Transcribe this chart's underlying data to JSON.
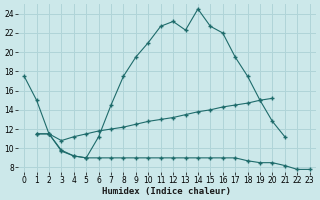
{
  "xlabel": "Humidex (Indice chaleur)",
  "background_color": "#cce8ea",
  "grid_color": "#b0d4d8",
  "line_color": "#1e6b6b",
  "xlim": [
    -0.5,
    23.5
  ],
  "ylim": [
    7.5,
    25.0
  ],
  "xticks": [
    0,
    1,
    2,
    3,
    4,
    5,
    6,
    7,
    8,
    9,
    10,
    11,
    12,
    13,
    14,
    15,
    16,
    17,
    18,
    19,
    20,
    21,
    22,
    23
  ],
  "yticks": [
    8,
    10,
    12,
    14,
    16,
    18,
    20,
    22,
    24
  ],
  "line1_x": [
    0,
    1,
    2,
    3,
    4,
    5,
    6,
    7,
    8,
    9,
    10,
    11,
    12,
    13,
    14,
    15,
    16,
    17,
    18,
    19,
    20,
    21
  ],
  "line1_y": [
    17.5,
    15.0,
    11.5,
    9.7,
    9.2,
    9.0,
    11.2,
    14.5,
    17.5,
    19.5,
    21.0,
    22.7,
    23.2,
    22.3,
    24.5,
    22.7,
    22.0,
    19.5,
    17.5,
    15.0,
    12.8,
    11.2
  ],
  "line2_x": [
    1,
    2,
    3,
    4,
    5,
    6,
    7,
    8,
    9,
    10,
    11,
    12,
    13,
    14,
    15,
    16,
    17,
    18,
    19,
    20
  ],
  "line2_y": [
    11.5,
    11.5,
    10.8,
    11.2,
    11.5,
    11.8,
    12.0,
    12.2,
    12.5,
    12.8,
    13.0,
    13.2,
    13.5,
    13.8,
    14.0,
    14.3,
    14.5,
    14.7,
    15.0,
    15.2
  ],
  "line3_x": [
    1,
    2,
    3,
    4,
    5,
    6,
    7,
    8,
    9,
    10,
    11,
    12,
    13,
    14,
    15,
    16,
    17,
    18,
    19,
    20,
    21,
    22,
    23
  ],
  "line3_y": [
    11.5,
    11.5,
    9.8,
    9.2,
    9.0,
    9.0,
    9.0,
    9.0,
    9.0,
    9.0,
    9.0,
    9.0,
    9.0,
    9.0,
    9.0,
    9.0,
    9.0,
    8.7,
    8.5,
    8.5,
    8.2,
    7.8,
    7.8
  ]
}
